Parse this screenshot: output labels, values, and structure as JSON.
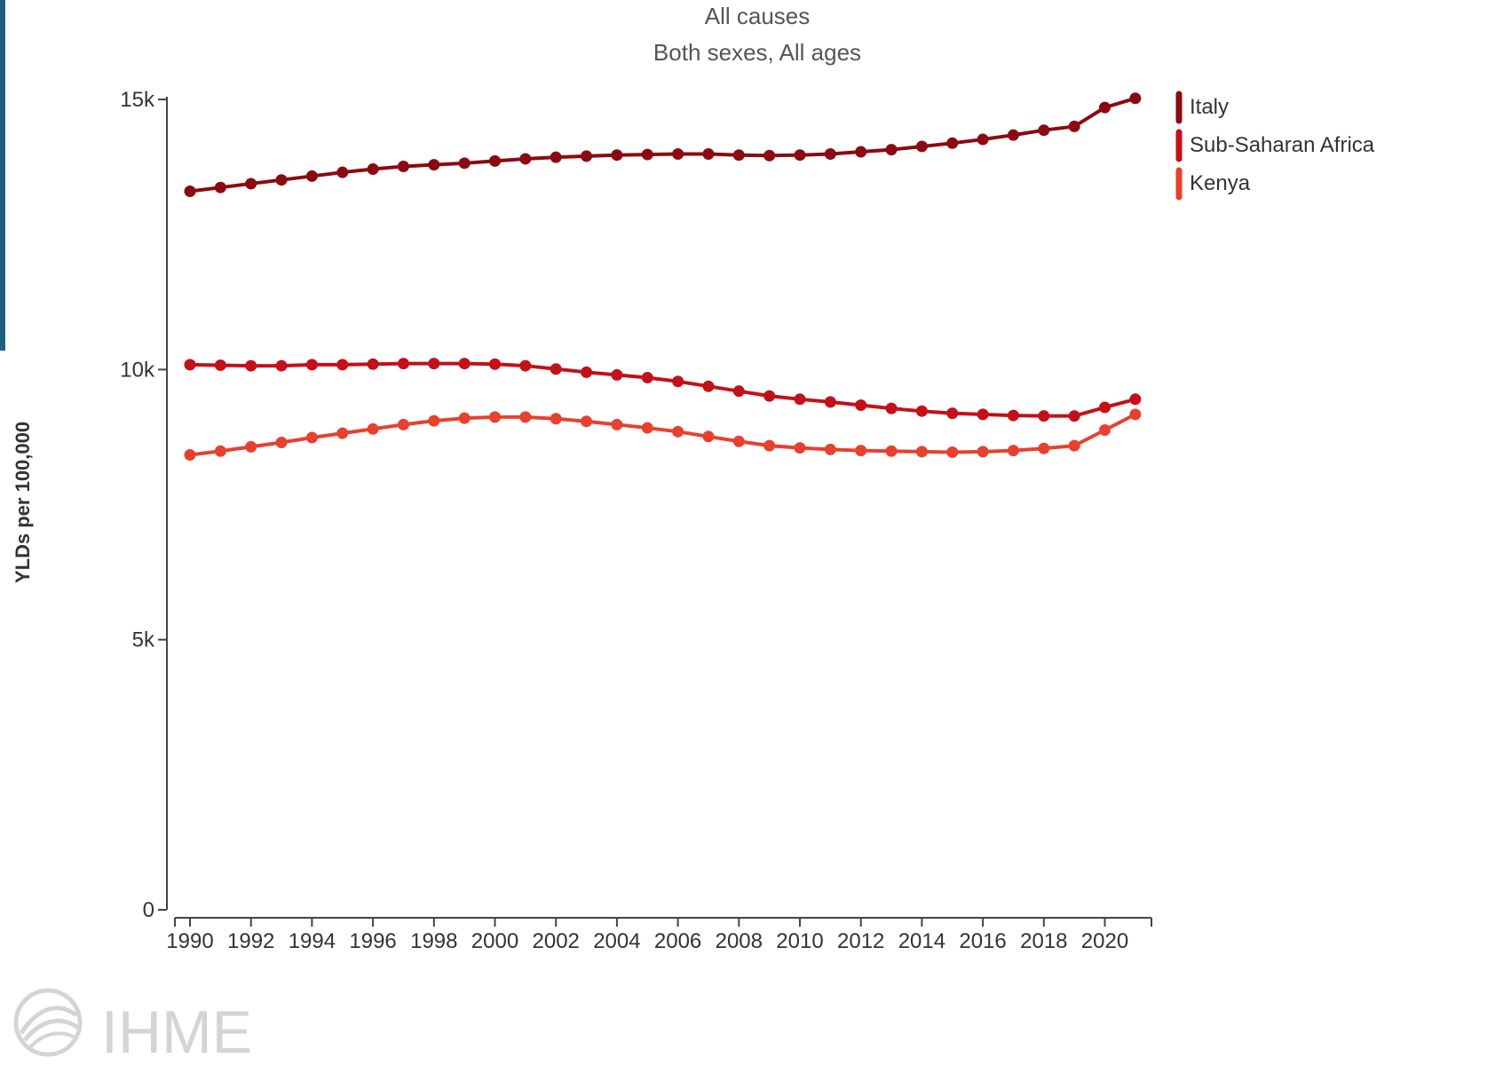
{
  "chart_data": {
    "type": "line",
    "title": "All causes",
    "subtitle": "Both sexes, All ages",
    "ylabel": "YLDs per 100,000",
    "xlabel": "",
    "x": [
      1990,
      1991,
      1992,
      1993,
      1994,
      1995,
      1996,
      1997,
      1998,
      1999,
      2000,
      2001,
      2002,
      2003,
      2004,
      2005,
      2006,
      2007,
      2008,
      2009,
      2010,
      2011,
      2012,
      2013,
      2014,
      2015,
      2016,
      2017,
      2018,
      2019,
      2020,
      2021
    ],
    "x_tick_labels": [
      "1990",
      "1992",
      "1994",
      "1996",
      "1998",
      "2000",
      "2002",
      "2004",
      "2006",
      "2008",
      "2010",
      "2012",
      "2014",
      "2016",
      "2018",
      "2020"
    ],
    "y_tick_labels": [
      "0",
      "5k",
      "10k",
      "15k"
    ],
    "y_ticks": [
      0,
      5000,
      10000,
      15000
    ],
    "ylim": [
      0,
      15000
    ],
    "xlim": [
      1989.5,
      2022
    ],
    "grid": false,
    "legend_position": "top-right",
    "series": [
      {
        "name": "Italy",
        "color": "#8b0a12",
        "values": [
          13300,
          13370,
          13440,
          13510,
          13580,
          13650,
          13710,
          13760,
          13790,
          13820,
          13860,
          13900,
          13930,
          13950,
          13970,
          13980,
          13990,
          13990,
          13970,
          13960,
          13970,
          13990,
          14030,
          14070,
          14130,
          14190,
          14260,
          14340,
          14430,
          14500,
          14850,
          15020
        ]
      },
      {
        "name": "Sub-Saharan Africa",
        "color": "#c41019",
        "values": [
          10090,
          10080,
          10070,
          10070,
          10090,
          10090,
          10100,
          10110,
          10110,
          10110,
          10100,
          10070,
          10010,
          9950,
          9900,
          9850,
          9780,
          9690,
          9600,
          9510,
          9450,
          9400,
          9340,
          9280,
          9230,
          9190,
          9170,
          9150,
          9140,
          9140,
          9300,
          9450
        ]
      },
      {
        "name": "Kenya",
        "color": "#e8402f",
        "values": [
          8420,
          8490,
          8570,
          8650,
          8740,
          8820,
          8900,
          8980,
          9050,
          9100,
          9120,
          9120,
          9090,
          9040,
          8980,
          8920,
          8850,
          8760,
          8670,
          8590,
          8550,
          8520,
          8500,
          8490,
          8480,
          8470,
          8480,
          8500,
          8540,
          8590,
          8880,
          9170
        ]
      }
    ]
  },
  "watermark": {
    "text": "IHME",
    "icon": "ihme-logo-icon"
  }
}
